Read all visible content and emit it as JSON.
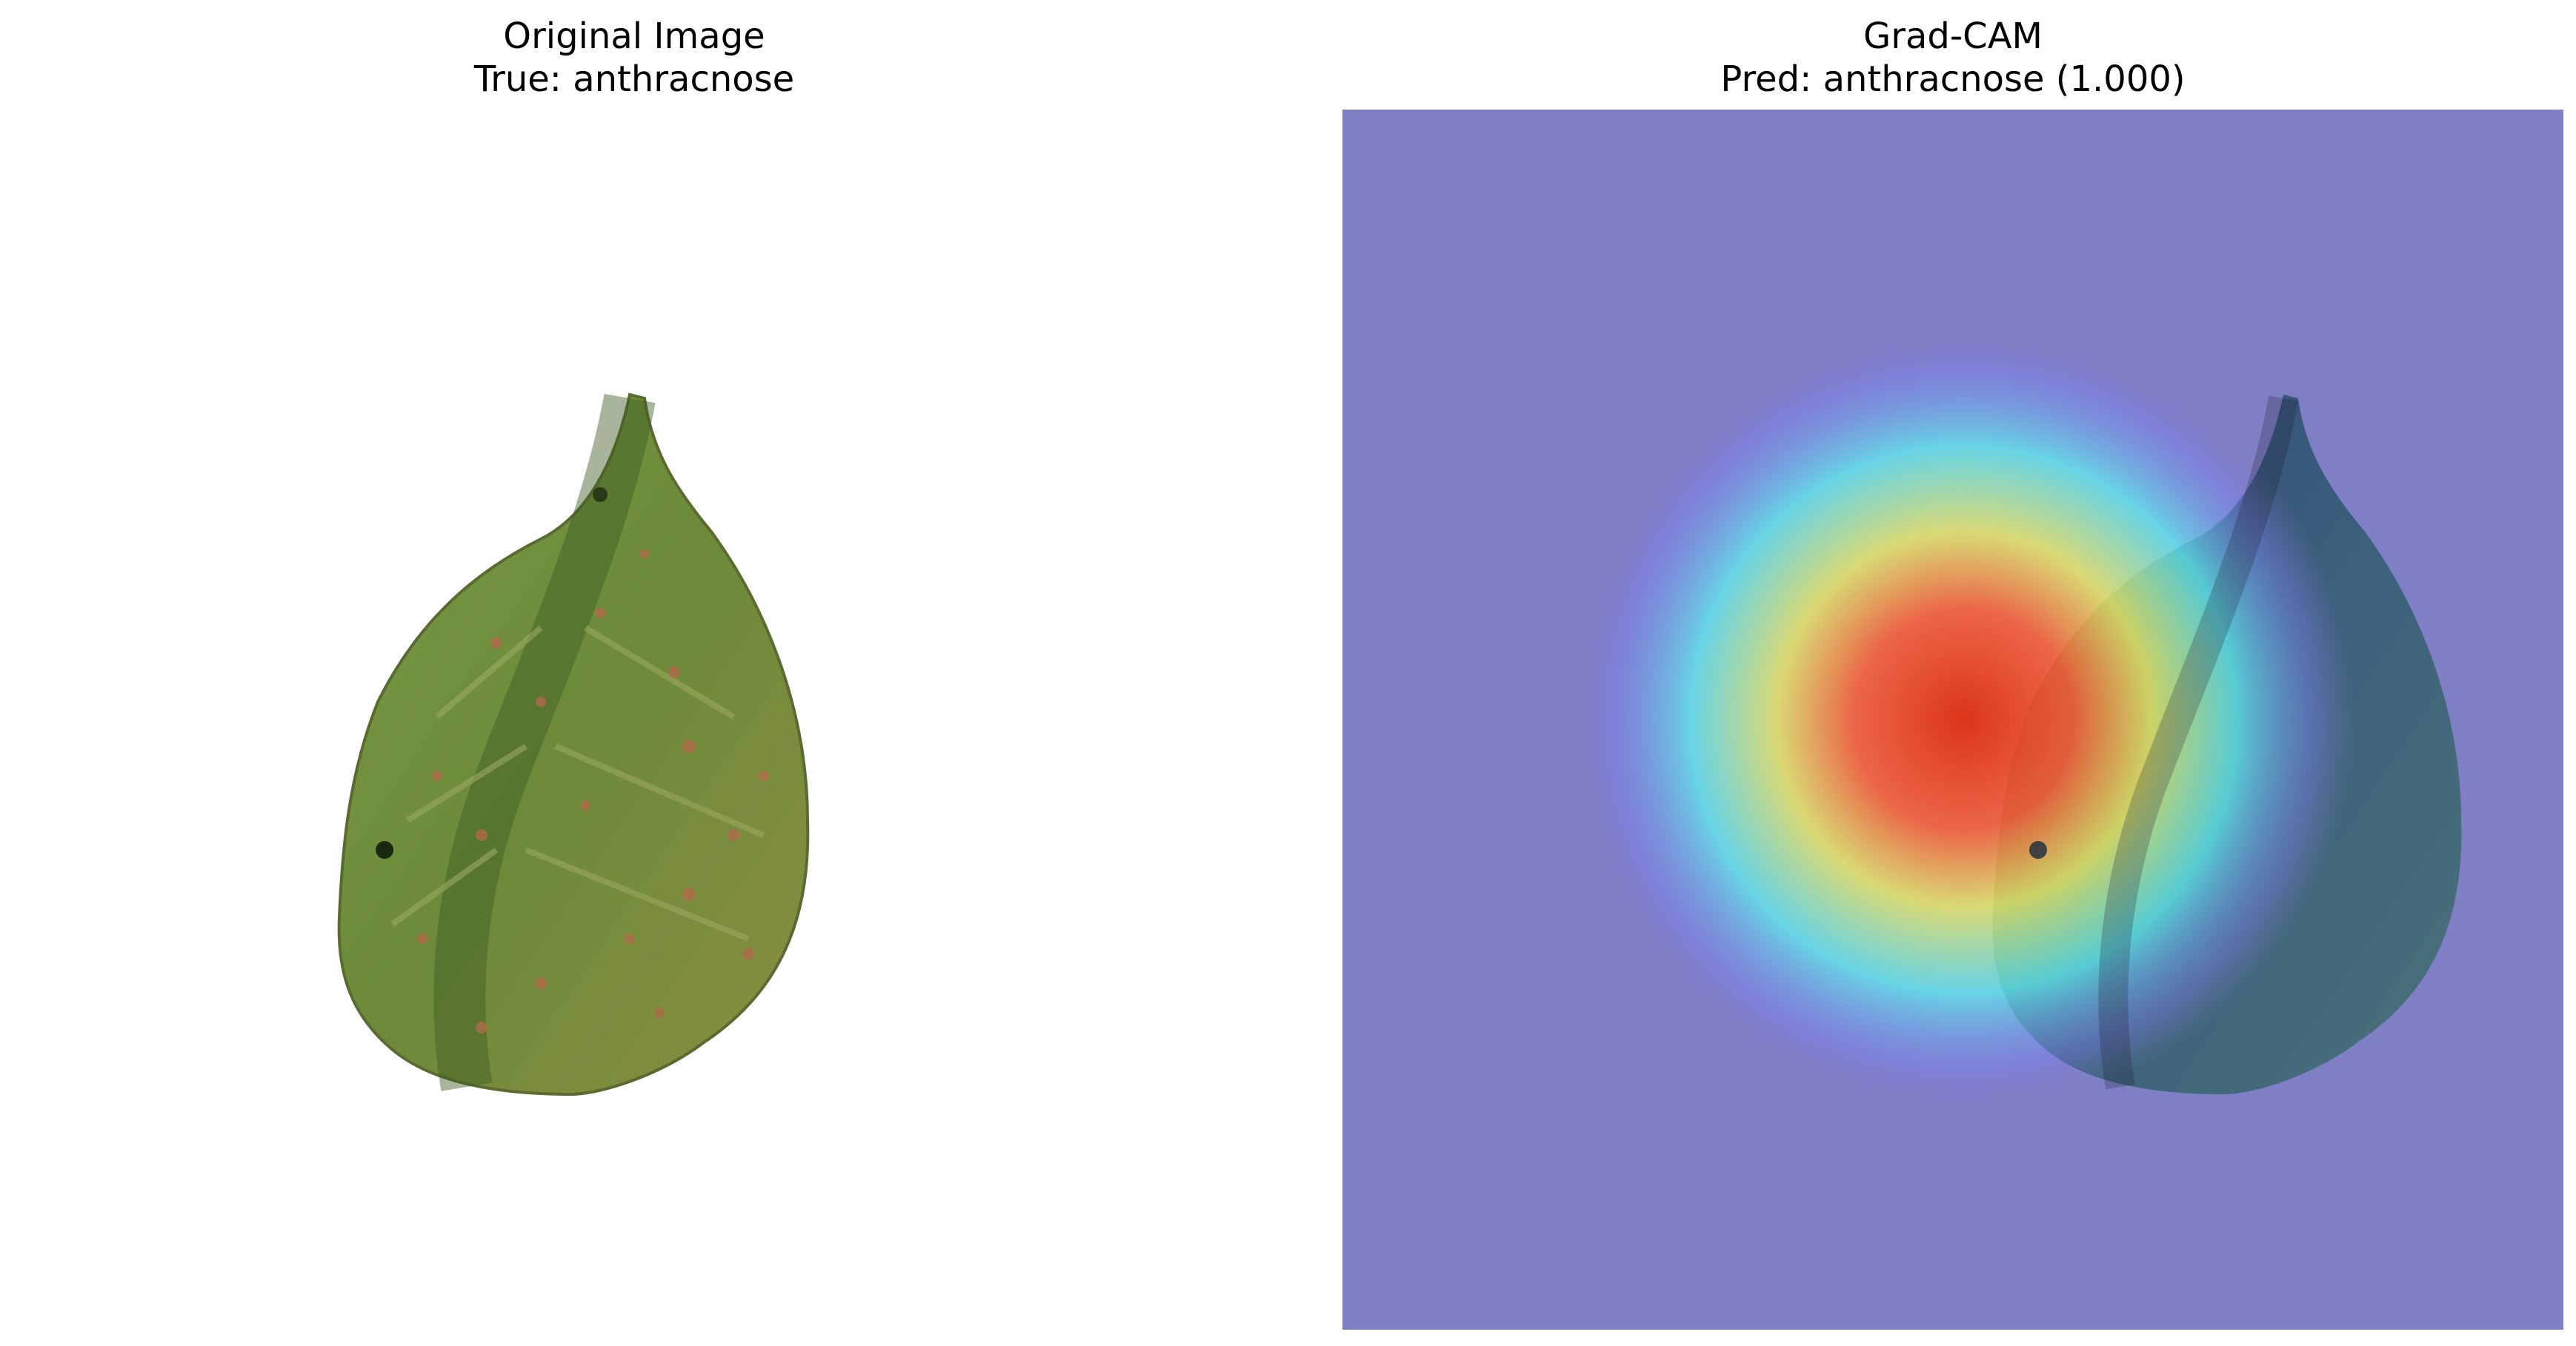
{
  "panels": {
    "left": {
      "title_line1": "Original Image",
      "title_line2": "True: anthracnose"
    },
    "right": {
      "title_line1": "Grad-CAM",
      "title_line2": "Pred: anthracnose (1.000)"
    }
  },
  "colors": {
    "background": "#ffffff",
    "overlay_base": "#7f7fc6",
    "leaf_green": "#6f8a3c",
    "leaf_dark": "#4f6a2c",
    "spot_color": "#b06a4a",
    "heat_red": "#e03010",
    "heat_yellow": "#f0f060",
    "heat_cyan": "#60f0f0"
  }
}
